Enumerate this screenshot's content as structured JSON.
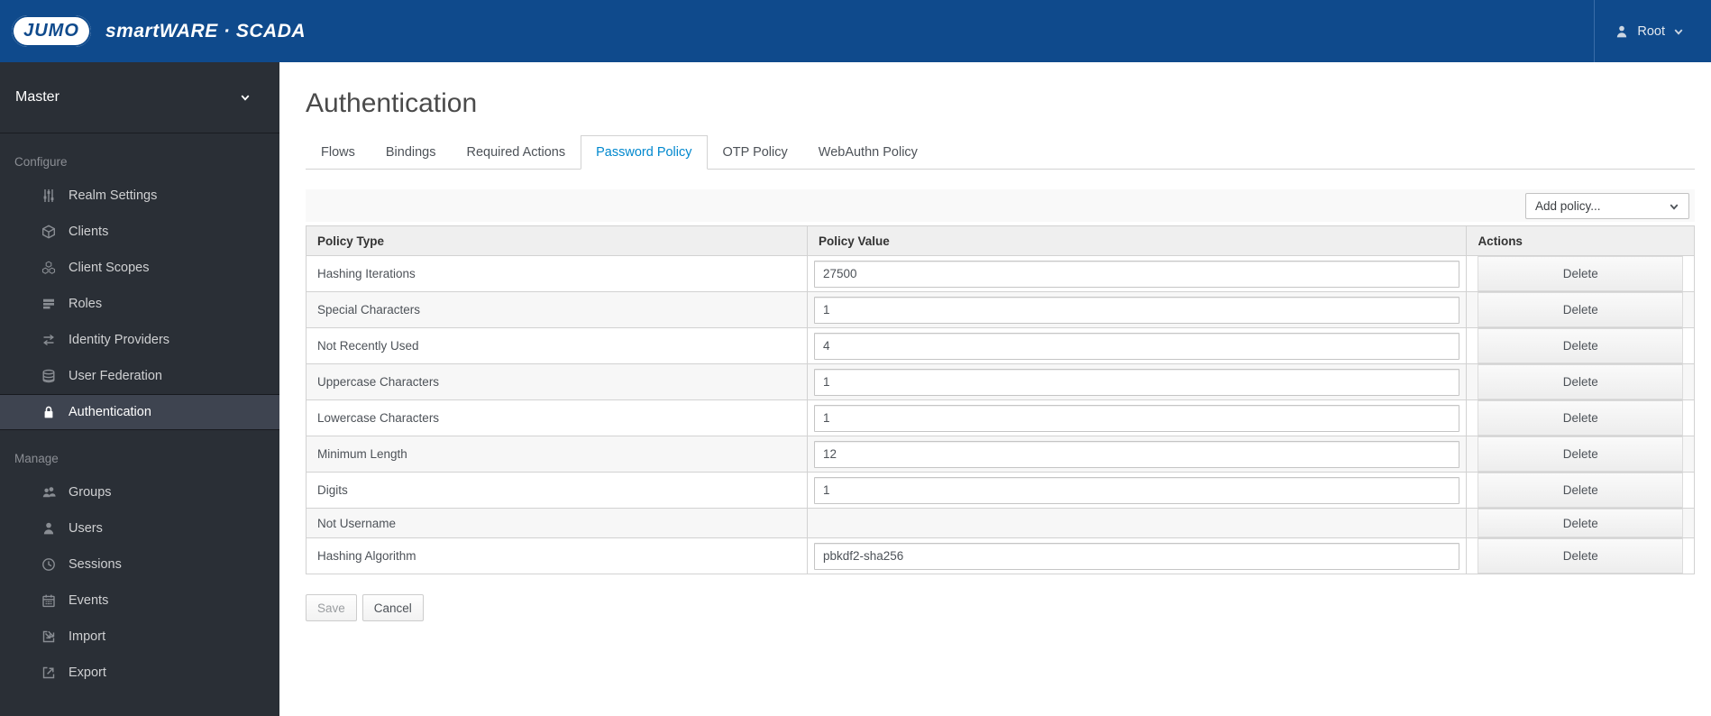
{
  "header": {
    "logo_text": "JUMO",
    "product_name": "smartWARE · SCADA",
    "user": {
      "name": "Root",
      "icon": "user-icon"
    }
  },
  "sidebar": {
    "realm": "Master",
    "sections": [
      {
        "label": "Configure",
        "items": [
          {
            "label": "Realm Settings",
            "icon": "sliders-icon",
            "active": false
          },
          {
            "label": "Clients",
            "icon": "cube-icon",
            "active": false
          },
          {
            "label": "Client Scopes",
            "icon": "cubes-icon",
            "active": false
          },
          {
            "label": "Roles",
            "icon": "list-icon",
            "active": false
          },
          {
            "label": "Identity Providers",
            "icon": "exchange-icon",
            "active": false
          },
          {
            "label": "User Federation",
            "icon": "database-icon",
            "active": false
          },
          {
            "label": "Authentication",
            "icon": "lock-icon",
            "active": true
          }
        ]
      },
      {
        "label": "Manage",
        "items": [
          {
            "label": "Groups",
            "icon": "users-icon",
            "active": false
          },
          {
            "label": "Users",
            "icon": "user-icon",
            "active": false
          },
          {
            "label": "Sessions",
            "icon": "clock-icon",
            "active": false
          },
          {
            "label": "Events",
            "icon": "calendar-icon",
            "active": false
          },
          {
            "label": "Import",
            "icon": "import-icon",
            "active": false
          },
          {
            "label": "Export",
            "icon": "export-icon",
            "active": false
          }
        ]
      }
    ]
  },
  "main": {
    "title": "Authentication",
    "tabs": [
      {
        "label": "Flows",
        "active": false
      },
      {
        "label": "Bindings",
        "active": false
      },
      {
        "label": "Required Actions",
        "active": false
      },
      {
        "label": "Password Policy",
        "active": true
      },
      {
        "label": "OTP Policy",
        "active": false
      },
      {
        "label": "WebAuthn Policy",
        "active": false
      }
    ],
    "toolbar": {
      "add_policy_label": "Add policy..."
    },
    "table": {
      "columns": [
        "Policy Type",
        "Policy Value",
        "Actions"
      ],
      "rows": [
        {
          "type": "Hashing Iterations",
          "value": "27500",
          "has_input": true,
          "action": "Delete"
        },
        {
          "type": "Special Characters",
          "value": "1",
          "has_input": true,
          "action": "Delete"
        },
        {
          "type": "Not Recently Used",
          "value": "4",
          "has_input": true,
          "action": "Delete"
        },
        {
          "type": "Uppercase Characters",
          "value": "1",
          "has_input": true,
          "action": "Delete"
        },
        {
          "type": "Lowercase Characters",
          "value": "1",
          "has_input": true,
          "action": "Delete"
        },
        {
          "type": "Minimum Length",
          "value": "12",
          "has_input": true,
          "action": "Delete"
        },
        {
          "type": "Digits",
          "value": "1",
          "has_input": true,
          "action": "Delete"
        },
        {
          "type": "Not Username",
          "value": "",
          "has_input": false,
          "action": "Delete"
        },
        {
          "type": "Hashing Algorithm",
          "value": "pbkdf2-sha256",
          "has_input": true,
          "action": "Delete"
        }
      ]
    },
    "buttons": {
      "save": "Save",
      "cancel": "Cancel"
    }
  },
  "colors": {
    "header": "#0f4a8c",
    "sidebar": "#2a2f36",
    "sidebar_active": "#3e4450",
    "active_tab": "#0088ce",
    "table_border": "#d2d2d2",
    "row_stripe": "#f7f7f7",
    "toolbar": "#f9f9f9"
  }
}
